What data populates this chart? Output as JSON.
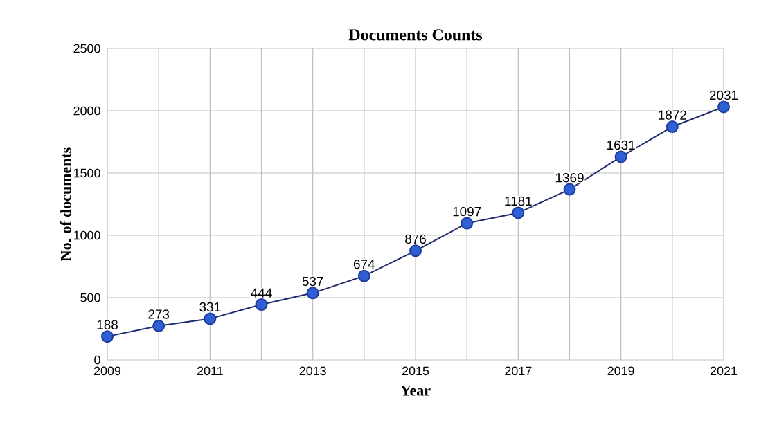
{
  "chart_data": {
    "type": "line",
    "title": "Documents Counts",
    "xlabel": "Year",
    "ylabel": "No. of documents",
    "x": [
      2009,
      2010,
      2011,
      2012,
      2013,
      2014,
      2015,
      2016,
      2017,
      2018,
      2019,
      2020,
      2021
    ],
    "series": [
      {
        "color": "#1f2a6e",
        "values": [
          188,
          273,
          331,
          444,
          537,
          674,
          876,
          1097,
          1181,
          1369,
          1631,
          1872,
          2031
        ]
      }
    ],
    "xlim": [
      2009,
      2021
    ],
    "xticks": [
      2009,
      {
        "value": 2010,
        "label": null
      },
      2011,
      {
        "value": 2012,
        "label": null
      },
      2013,
      {
        "value": 2014,
        "label": null
      },
      2015,
      {
        "value": 2016,
        "label": null
      },
      2017,
      {
        "value": 2018,
        "label": null
      },
      2019,
      {
        "value": 2020,
        "label": null
      },
      2021
    ],
    "ylim": [
      0,
      2500
    ],
    "yticks": [
      0,
      500,
      1000,
      1500,
      2000,
      2500
    ],
    "grid": true,
    "marker": "circle",
    "line_style": "solid",
    "data_labels": true
  }
}
